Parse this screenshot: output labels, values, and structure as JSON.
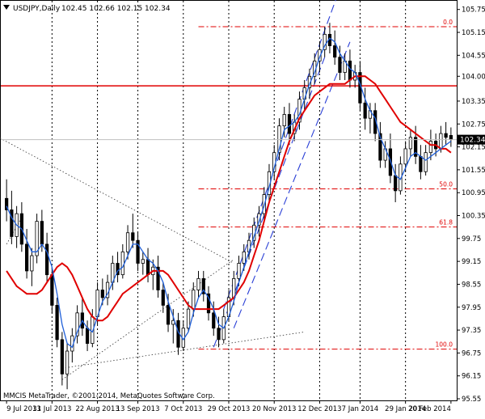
{
  "header": {
    "symbol_timeframe": "USDJPY,Daily",
    "ohlc": "102.45 102.66 102.15 102.34"
  },
  "footer": {
    "copyright": "MMCIS MetaTrader, ©2001-2014, MetaQuotes Software Corp."
  },
  "chart_data": {
    "type": "candlestick",
    "symbol": "USDJPY",
    "timeframe": "Daily",
    "ylim": [
      95.55,
      105.85
    ],
    "y_ticks": [
      "105.75",
      "105.15",
      "104.55",
      "104.00",
      "103.35",
      "102.75",
      "102.15",
      "101.55",
      "100.95",
      "100.35",
      "99.75",
      "99.15",
      "98.55",
      "97.95",
      "97.35",
      "96.75",
      "96.15",
      "95.55"
    ],
    "x_ticks": [
      "9 Jul 2013",
      "31 Jul 2013",
      "22 Aug 2013",
      "13 Sep 2013",
      "7 Oct 2013",
      "29 Oct 2013",
      "20 Nov 2013",
      "12 Dec 2013",
      "7 Jan 2014",
      "29 Jan 2014",
      "20 Feb 2014"
    ],
    "current_price": "102.34",
    "current_price_value": 102.34,
    "horizontal_line_price": 103.75,
    "fibonacci": {
      "levels": [
        {
          "label": "0.0",
          "price": 105.3
        },
        {
          "label": "50.0",
          "price": 101.05
        },
        {
          "label": "61.8",
          "price": 100.05
        },
        {
          "label": "100.0",
          "price": 96.85
        }
      ]
    },
    "series": [
      {
        "kind": "ohlc",
        "values": [
          [
            100.8,
            101.3,
            100.2,
            100.5
          ],
          [
            100.5,
            101.0,
            99.6,
            99.8
          ],
          [
            99.8,
            100.6,
            99.5,
            100.4
          ],
          [
            100.4,
            100.7,
            99.4,
            99.6
          ],
          [
            99.6,
            100.0,
            98.7,
            98.9
          ],
          [
            98.9,
            99.5,
            98.5,
            99.3
          ],
          [
            99.3,
            100.4,
            99.1,
            100.2
          ],
          [
            100.2,
            100.5,
            99.4,
            99.6
          ],
          [
            99.6,
            99.9,
            98.6,
            98.8
          ],
          [
            98.8,
            99.0,
            97.8,
            98.0
          ],
          [
            98.0,
            98.2,
            96.9,
            97.1
          ],
          [
            97.1,
            97.3,
            95.9,
            96.2
          ],
          [
            96.2,
            97.0,
            95.8,
            96.8
          ],
          [
            96.8,
            97.4,
            96.5,
            97.2
          ],
          [
            97.2,
            98.0,
            97.0,
            97.8
          ],
          [
            97.8,
            98.2,
            97.2,
            97.4
          ],
          [
            97.4,
            97.6,
            96.8,
            97.0
          ],
          [
            97.0,
            97.9,
            96.9,
            97.7
          ],
          [
            97.7,
            98.6,
            97.5,
            98.4
          ],
          [
            98.4,
            98.7,
            98.0,
            98.2
          ],
          [
            98.2,
            98.8,
            98.0,
            98.6
          ],
          [
            98.6,
            99.3,
            98.4,
            99.1
          ],
          [
            99.1,
            99.4,
            98.6,
            98.8
          ],
          [
            98.8,
            99.6,
            98.7,
            99.4
          ],
          [
            99.4,
            100.1,
            99.2,
            99.9
          ],
          [
            99.9,
            100.4,
            99.5,
            99.7
          ],
          [
            99.7,
            99.9,
            98.9,
            99.1
          ],
          [
            99.1,
            99.4,
            98.8,
            99.2
          ],
          [
            99.2,
            99.5,
            98.6,
            98.8
          ],
          [
            98.8,
            99.2,
            98.4,
            99.0
          ],
          [
            99.0,
            99.3,
            98.2,
            98.4
          ],
          [
            98.4,
            98.6,
            97.8,
            98.0
          ],
          [
            98.0,
            98.3,
            97.3,
            97.5
          ],
          [
            97.5,
            97.9,
            97.0,
            97.6
          ],
          [
            97.6,
            97.8,
            96.7,
            96.9
          ],
          [
            96.9,
            97.6,
            96.8,
            97.4
          ],
          [
            97.4,
            98.1,
            97.3,
            97.9
          ],
          [
            97.9,
            98.6,
            97.7,
            98.4
          ],
          [
            98.4,
            98.9,
            98.2,
            98.7
          ],
          [
            98.7,
            98.9,
            98.1,
            98.3
          ],
          [
            98.3,
            98.5,
            97.6,
            97.8
          ],
          [
            97.8,
            98.1,
            97.2,
            97.4
          ],
          [
            97.4,
            97.7,
            96.9,
            97.1
          ],
          [
            97.1,
            97.9,
            97.0,
            97.7
          ],
          [
            97.7,
            98.4,
            97.6,
            98.2
          ],
          [
            98.2,
            98.9,
            98.0,
            98.7
          ],
          [
            98.7,
            99.3,
            98.5,
            99.1
          ],
          [
            99.1,
            99.6,
            98.9,
            99.4
          ],
          [
            99.4,
            99.9,
            99.2,
            99.7
          ],
          [
            99.7,
            100.3,
            99.5,
            100.1
          ],
          [
            100.1,
            100.6,
            99.8,
            100.4
          ],
          [
            100.4,
            101.1,
            100.2,
            100.9
          ],
          [
            100.9,
            101.7,
            100.7,
            101.5
          ],
          [
            101.5,
            102.2,
            101.3,
            102.0
          ],
          [
            102.0,
            102.9,
            101.8,
            102.7
          ],
          [
            102.7,
            103.2,
            102.4,
            103.0
          ],
          [
            103.0,
            103.3,
            102.2,
            102.5
          ],
          [
            102.5,
            103.0,
            102.3,
            102.8
          ],
          [
            102.8,
            103.6,
            102.6,
            103.4
          ],
          [
            103.4,
            103.9,
            103.1,
            103.7
          ],
          [
            103.7,
            104.2,
            103.4,
            104.0
          ],
          [
            104.0,
            104.6,
            103.8,
            104.4
          ],
          [
            104.4,
            104.9,
            104.1,
            104.7
          ],
          [
            104.7,
            105.3,
            104.5,
            105.1
          ],
          [
            105.1,
            105.4,
            104.6,
            104.8
          ],
          [
            104.8,
            105.2,
            104.3,
            104.5
          ],
          [
            104.5,
            104.8,
            103.9,
            104.1
          ],
          [
            104.1,
            104.6,
            103.9,
            104.4
          ],
          [
            104.4,
            104.7,
            103.7,
            103.9
          ],
          [
            103.9,
            104.3,
            103.7,
            104.1
          ],
          [
            104.1,
            104.4,
            103.1,
            103.3
          ],
          [
            103.3,
            103.7,
            102.6,
            102.9
          ],
          [
            102.9,
            103.3,
            102.5,
            103.1
          ],
          [
            103.1,
            103.3,
            102.3,
            102.5
          ],
          [
            102.5,
            102.8,
            101.6,
            101.8
          ],
          [
            101.8,
            102.3,
            101.6,
            102.1
          ],
          [
            102.1,
            102.5,
            101.2,
            101.4
          ],
          [
            101.4,
            101.7,
            100.7,
            101.0
          ],
          [
            101.0,
            101.9,
            100.9,
            101.7
          ],
          [
            101.7,
            102.3,
            101.5,
            102.1
          ],
          [
            102.1,
            102.6,
            101.9,
            102.4
          ],
          [
            102.4,
            102.7,
            101.7,
            101.9
          ],
          [
            101.9,
            102.2,
            101.3,
            101.5
          ],
          [
            101.5,
            102.2,
            101.4,
            102.0
          ],
          [
            102.0,
            102.6,
            101.8,
            102.3
          ],
          [
            102.3,
            102.5,
            101.9,
            102.1
          ],
          [
            102.1,
            102.7,
            102.0,
            102.5
          ],
          [
            102.5,
            102.8,
            102.2,
            102.4
          ],
          [
            102.45,
            102.66,
            102.15,
            102.34
          ]
        ]
      },
      {
        "kind": "ma_fast",
        "color": "#1f5fd9",
        "values": [
          100.6,
          100.3,
          100.1,
          100.0,
          99.7,
          99.4,
          99.4,
          99.6,
          99.4,
          99.0,
          98.3,
          97.5,
          97.0,
          96.9,
          97.3,
          97.6,
          97.4,
          97.3,
          97.7,
          98.1,
          98.3,
          98.6,
          98.9,
          99.0,
          99.3,
          99.6,
          99.6,
          99.4,
          99.2,
          99.1,
          98.9,
          98.6,
          98.1,
          97.7,
          97.3,
          97.1,
          97.3,
          97.8,
          98.2,
          98.4,
          98.2,
          97.9,
          97.5,
          97.4,
          97.7,
          98.1,
          98.6,
          99.0,
          99.4,
          99.8,
          100.2,
          100.6,
          101.1,
          101.6,
          102.1,
          102.6,
          102.7,
          102.8,
          103.0,
          103.4,
          103.8,
          104.1,
          104.5,
          104.8,
          105.0,
          104.9,
          104.6,
          104.4,
          104.2,
          104.1,
          103.8,
          103.4,
          103.1,
          102.9,
          102.4,
          102.1,
          101.8,
          101.4,
          101.3,
          101.6,
          101.9,
          102.0,
          101.9,
          101.8,
          101.9,
          102.0,
          102.1,
          102.2,
          102.3
        ]
      },
      {
        "kind": "ma_slow",
        "color": "#e00000",
        "values": [
          98.9,
          98.7,
          98.5,
          98.4,
          98.3,
          98.3,
          98.3,
          98.4,
          98.6,
          98.8,
          99.0,
          99.1,
          99.0,
          98.8,
          98.5,
          98.2,
          97.9,
          97.7,
          97.6,
          97.6,
          97.7,
          97.9,
          98.1,
          98.3,
          98.4,
          98.5,
          98.6,
          98.7,
          98.8,
          98.9,
          98.9,
          98.9,
          98.8,
          98.6,
          98.4,
          98.2,
          98.0,
          97.9,
          97.9,
          97.9,
          97.9,
          97.9,
          97.9,
          98.0,
          98.1,
          98.2,
          98.4,
          98.6,
          98.9,
          99.3,
          99.7,
          100.2,
          100.7,
          101.1,
          101.5,
          101.9,
          102.3,
          102.6,
          102.9,
          103.1,
          103.3,
          103.5,
          103.6,
          103.7,
          103.8,
          103.8,
          103.8,
          103.8,
          103.9,
          104.0,
          104.0,
          104.0,
          103.9,
          103.8,
          103.6,
          103.4,
          103.2,
          103.0,
          102.8,
          102.7,
          102.6,
          102.5,
          102.4,
          102.3,
          102.2,
          102.2,
          102.1,
          102.1,
          102.0
        ]
      }
    ]
  }
}
